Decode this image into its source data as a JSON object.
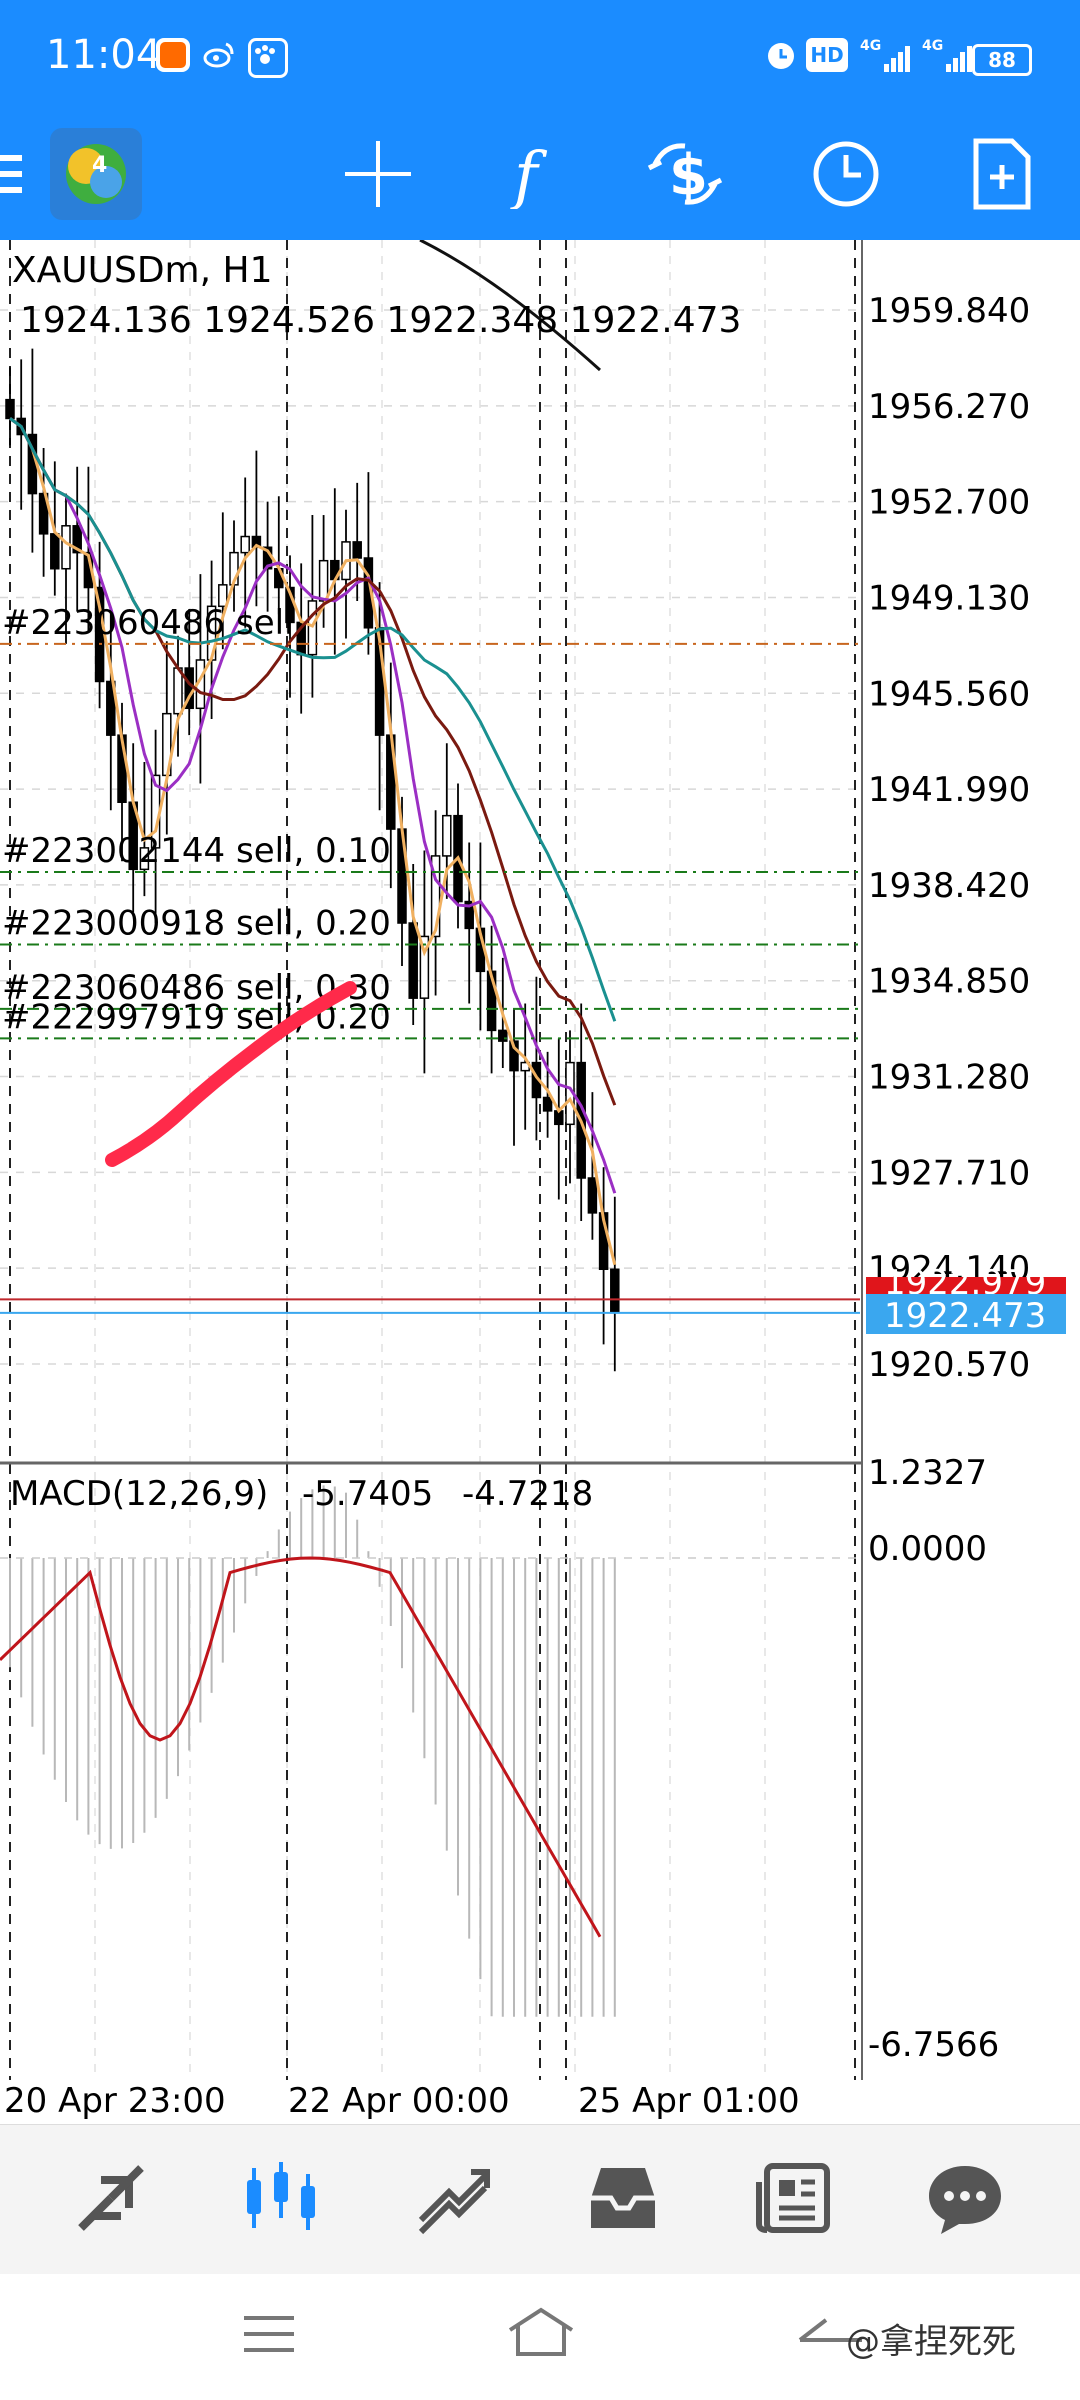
{
  "status_bar": {
    "time": "11:04",
    "battery": "88",
    "icons": [
      "app-notification-icon",
      "weibo-icon",
      "paw-app-icon",
      "alarm-icon",
      "hd-icon",
      "signal-4g-icon",
      "signal-4g-icon",
      "battery-icon"
    ]
  },
  "toolbar": {
    "buttons": [
      "mt4-logo-icon",
      "crosshair-icon",
      "function-icon",
      "trade-dollar-icon",
      "clock-icon",
      "add-document-icon"
    ]
  },
  "chart": {
    "symbol_label": "XAUUSDm, H1",
    "ohlc": "1924.136 1924.526 1922.348 1922.473",
    "price_axis": [
      "1959.840",
      "1956.270",
      "1952.700",
      "1949.130",
      "1945.560",
      "1941.990",
      "1938.420",
      "1934.850",
      "1931.280",
      "1927.710",
      "1924.140",
      "1920.570"
    ],
    "current_bid": "1922.473",
    "current_ask_partial": "1922.979",
    "orders": [
      {
        "text": "#223060486  sell",
        "level": 1947.4,
        "color": "#c8661e"
      },
      {
        "text": "#223002144  sell,  0.10",
        "level": 1938.9,
        "color": "#1a7a1a"
      },
      {
        "text": "#223000918  sell,  0.20",
        "level": 1936.2,
        "color": "#1a7a1a"
      },
      {
        "text": "#223060486  sell,  0.30",
        "level": 1933.8,
        "color": "#1a7a1a"
      },
      {
        "text": "#222997919  sell,  0.20",
        "level": 1932.7,
        "color": "#1a7a1a"
      }
    ],
    "macd": {
      "label": "MACD(12,26,9)",
      "value1": "-5.7405",
      "value2": "-4.7218",
      "axis": [
        "1.2327",
        "0.0000",
        "-6.7566"
      ]
    },
    "time_axis": [
      "20  Apr  23:00",
      "22  Apr  00:00",
      "25  Apr  01:00"
    ]
  },
  "bottom_nav": {
    "items": [
      "quotes-icon",
      "chart-icon",
      "trade-icon",
      "history-icon",
      "news-icon",
      "chat-icon"
    ],
    "active": "chart-icon",
    "accent": "#1b8cff"
  },
  "system_nav": {
    "items": [
      "menu-icon",
      "home-icon",
      "back-icon"
    ],
    "watermark": "@拿捏死死"
  }
}
